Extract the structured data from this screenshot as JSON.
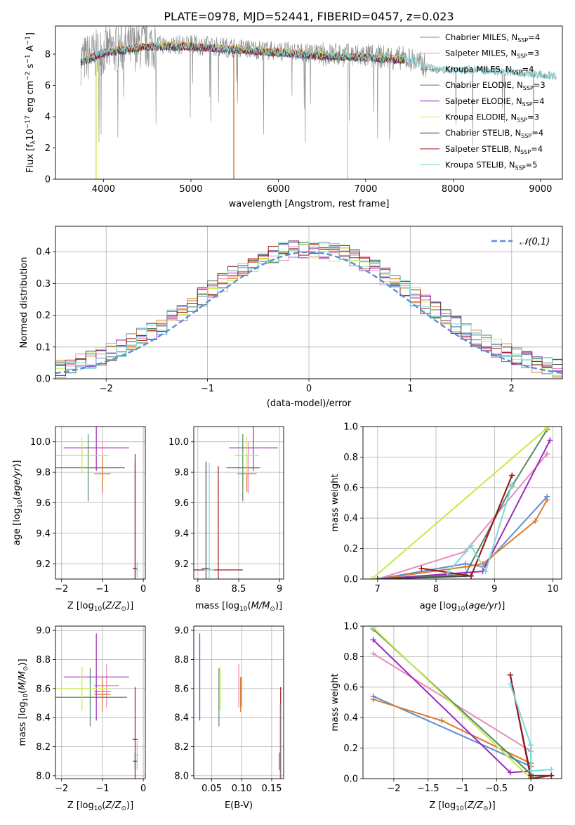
{
  "figure_title": "PLATE=0978, MJD=52441, FIBERID=0457, z=0.023",
  "models": [
    {
      "name": "Chabrier MILES, N$_{SSP}$=4",
      "label": "Chabrier MILES, N",
      "sub": "SSP",
      "tail": "=4",
      "color": "#5b8fd4"
    },
    {
      "name": "Salpeter MILES, N$_{SSP}$=3",
      "label": "Salpeter MILES, N",
      "sub": "SSP",
      "tail": "=3",
      "color": "#e88bbf"
    },
    {
      "name": "Kroupa MILES, N$_{SSP}$=4",
      "label": "Kroupa MILES, N",
      "sub": "SSP",
      "tail": "=4",
      "color": "#e07b2a"
    },
    {
      "name": "Chabrier ELODIE, N$_{SSP}$=3",
      "label": "Chabrier ELODIE, N",
      "sub": "SSP",
      "tail": "=3",
      "color": "#4e8b5f"
    },
    {
      "name": "Salpeter ELODIE, N$_{SSP}$=4",
      "label": "Salpeter ELODIE, N",
      "sub": "SSP",
      "tail": "=4",
      "color": "#9a2bbf"
    },
    {
      "name": "Kroupa ELODIE, N$_{SSP}$=3",
      "label": "Kroupa ELODIE, N",
      "sub": "SSP",
      "tail": "=3",
      "color": "#c9e84a"
    },
    {
      "name": "Chabrier STELIB, N$_{SSP}$=4",
      "label": "Chabrier STELIB, N",
      "sub": "SSP",
      "tail": "=4",
      "color": "#444444"
    },
    {
      "name": "Salpeter STELIB, N$_{SSP}$=4",
      "label": "Salpeter STELIB, N",
      "sub": "SSP",
      "tail": "=4",
      "color": "#a01818"
    },
    {
      "name": "Kroupa STELIB, N$_{SSP}$=5",
      "label": "Kroupa STELIB, N",
      "sub": "SSP",
      "tail": "=5",
      "color": "#7fd8d8"
    }
  ],
  "chart_data": [
    {
      "id": "spectrum",
      "type": "line",
      "xlabel": "wavelength [Angstrom, rest frame]",
      "ylabel": "Flux [f$_\\lambda$10$^{-17}$ erg cm$^{-2}$ s$^{-1}$ A$^{-1}$]",
      "ylabel_parts": {
        "a": "Flux [f",
        "b": "λ",
        "c": "10",
        "d": "−17",
        "e": " erg cm",
        "f": "−2",
        "g": " s",
        "h": "−1",
        "i": " A",
        "j": "−1",
        "k": "]"
      },
      "xlim": [
        3450,
        9250
      ],
      "ylim": [
        0,
        9.8
      ],
      "xticks": [
        4000,
        5000,
        6000,
        7000,
        8000,
        9000
      ],
      "yticks": [
        0,
        2,
        4,
        6,
        8
      ],
      "wave_range": [
        3740,
        9180
      ],
      "continuum": [
        [
          3740,
          7.6
        ],
        [
          4000,
          8.2
        ],
        [
          4500,
          8.6
        ],
        [
          5000,
          8.6
        ],
        [
          5500,
          8.4
        ],
        [
          6000,
          8.2
        ],
        [
          6500,
          8.0
        ],
        [
          7000,
          7.9
        ],
        [
          7500,
          7.7
        ],
        [
          7800,
          7.0
        ],
        [
          8200,
          7.0
        ],
        [
          8600,
          6.9
        ],
        [
          9180,
          6.6
        ]
      ],
      "data_color": "#888888",
      "grid": false,
      "legend_position": "upper right"
    },
    {
      "id": "residual-histogram",
      "type": "histogram",
      "xlabel": "(data-model)/error",
      "ylabel": "Normed distribution",
      "xlim": [
        -2.5,
        2.5
      ],
      "ylim": [
        0,
        0.48
      ],
      "xticks": [
        -2,
        -1,
        0,
        1,
        2
      ],
      "yticks": [
        0.0,
        0.1,
        0.2,
        0.3,
        0.4
      ],
      "bin_width": 0.1,
      "normal_label": "𝒩(0,1)",
      "normal_color": "#5b8fd4",
      "grid": true,
      "legend_position": "upper right"
    },
    {
      "id": "age-vs-Z",
      "type": "errorbar",
      "xlabel": "Z [log10(Z/Z⊙)]",
      "ylabel": "age [log10(age/yr)]",
      "xlim": [
        -2.15,
        0.05
      ],
      "ylim": [
        9.1,
        10.1
      ],
      "xticks": [
        -2,
        -1,
        0
      ],
      "yticks": [
        9.2,
        9.4,
        9.6,
        9.8,
        10.0
      ],
      "points": [
        {
          "model": 0,
          "x": -1.0,
          "y": 9.79,
          "xerr": 0.2,
          "yerr": 0.12
        },
        {
          "model": 1,
          "x": -1.0,
          "y": 9.83,
          "xerr": 0.3,
          "yerr": 0.17
        },
        {
          "model": 2,
          "x": -1.0,
          "y": 9.79,
          "xerr": 0.2,
          "yerr": 0.12
        },
        {
          "model": 3,
          "x": -1.35,
          "y": 9.83,
          "xerr": 0.9,
          "yerr": 0.22
        },
        {
          "model": 4,
          "x": -1.15,
          "y": 9.96,
          "xerr": 0.8,
          "yerr": 0.15
        },
        {
          "model": 5,
          "x": -1.5,
          "y": 9.91,
          "xerr": 0.65,
          "yerr": 0.12
        },
        {
          "model": 6,
          "x": -0.2,
          "y": 9.17,
          "xerr": 0.05,
          "yerr": 0.7
        },
        {
          "model": 7,
          "x": -0.2,
          "y": 9.17,
          "xerr": 0.06,
          "yerr": 0.75
        },
        {
          "model": 8,
          "x": -0.15,
          "y": 9.16,
          "xerr": 0.04,
          "yerr": 0.05
        }
      ],
      "grid": true
    },
    {
      "id": "age-vs-mass",
      "type": "errorbar",
      "xlabel": "mass [log10(M/M⊙)]",
      "ylabel": "",
      "xlim": [
        7.95,
        9.05
      ],
      "ylim": [
        9.1,
        10.1
      ],
      "xticks": [
        8.0,
        8.5,
        9.0
      ],
      "yticks": [
        9.2,
        9.4,
        9.6,
        9.8,
        10.0
      ],
      "points": [
        {
          "model": 0,
          "x": 8.6,
          "y": 9.79,
          "xerr": 0.1,
          "yerr": 0.12
        },
        {
          "model": 1,
          "x": 8.62,
          "y": 9.83,
          "xerr": 0.15,
          "yerr": 0.17
        },
        {
          "model": 2,
          "x": 8.6,
          "y": 9.79,
          "xerr": 0.12,
          "yerr": 0.12
        },
        {
          "model": 3,
          "x": 8.55,
          "y": 9.83,
          "xerr": 0.2,
          "yerr": 0.22
        },
        {
          "model": 4,
          "x": 8.68,
          "y": 9.96,
          "xerr": 0.3,
          "yerr": 0.15
        },
        {
          "model": 5,
          "x": 8.6,
          "y": 9.91,
          "xerr": 0.15,
          "yerr": 0.12
        },
        {
          "model": 6,
          "x": 8.1,
          "y": 9.17,
          "xerr": 0.05,
          "yerr": 0.7
        },
        {
          "model": 7,
          "x": 8.25,
          "y": 9.16,
          "xerr": 0.3,
          "yerr": 0.68
        },
        {
          "model": 8,
          "x": 8.14,
          "y": 9.16,
          "xerr": 0.06,
          "yerr": 0.7
        }
      ],
      "grid": true
    },
    {
      "id": "mass-weight-vs-age",
      "type": "line",
      "xlabel": "age [log10(age/yr)]",
      "ylabel": "mass weight",
      "xlim": [
        6.75,
        10.15
      ],
      "ylim": [
        0,
        1.0
      ],
      "xticks": [
        7,
        8,
        9,
        10
      ],
      "yticks": [
        0.0,
        0.2,
        0.4,
        0.6,
        0.8,
        1.0
      ],
      "series": [
        {
          "model": 0,
          "x": [
            7.0,
            8.5,
            8.8,
            9.9
          ],
          "y": [
            0.0,
            0.1,
            0.08,
            0.54
          ]
        },
        {
          "model": 1,
          "x": [
            7.0,
            8.5,
            9.9
          ],
          "y": [
            0.0,
            0.18,
            0.82
          ]
        },
        {
          "model": 2,
          "x": [
            7.0,
            8.5,
            8.8,
            9.7,
            9.9
          ],
          "y": [
            0.0,
            0.08,
            0.1,
            0.38,
            0.52
          ]
        },
        {
          "model": 3,
          "x": [
            7.0,
            8.5,
            9.3,
            9.9
          ],
          "y": [
            0.0,
            0.03,
            0.61,
            0.98
          ]
        },
        {
          "model": 4,
          "x": [
            7.0,
            8.8,
            9.95
          ],
          "y": [
            0.0,
            0.05,
            0.91
          ]
        },
        {
          "model": 5,
          "x": [
            6.9,
            9.9
          ],
          "y": [
            0.0,
            0.99
          ]
        },
        {
          "model": 6,
          "x": [
            7.0,
            8.6,
            9.3
          ],
          "y": [
            0.0,
            0.02,
            0.68
          ]
        },
        {
          "model": 7,
          "x": [
            7.75,
            8.6,
            9.3
          ],
          "y": [
            0.07,
            0.02,
            0.68
          ]
        },
        {
          "model": 8,
          "x": [
            8.2,
            8.6,
            8.85,
            9.3
          ],
          "y": [
            0.04,
            0.22,
            0.05,
            0.62
          ]
        }
      ],
      "grid": true
    },
    {
      "id": "mass-vs-Z",
      "type": "errorbar",
      "xlabel": "Z [log10(Z/Z⊙)]",
      "ylabel": "mass [log10(M/M⊙)]",
      "xlim": [
        -2.15,
        0.05
      ],
      "ylim": [
        7.98,
        9.03
      ],
      "xticks": [
        -2,
        -1,
        0
      ],
      "yticks": [
        8.0,
        8.2,
        8.4,
        8.6,
        8.8,
        9.0
      ],
      "points": [
        {
          "model": 0,
          "x": -1.0,
          "y": 8.58,
          "xerr": 0.2,
          "yerr": 0.1
        },
        {
          "model": 1,
          "x": -0.9,
          "y": 8.62,
          "xerr": 0.3,
          "yerr": 0.15
        },
        {
          "model": 2,
          "x": -1.0,
          "y": 8.56,
          "xerr": 0.2,
          "yerr": 0.12
        },
        {
          "model": 3,
          "x": -1.3,
          "y": 8.54,
          "xerr": 0.9,
          "yerr": 0.2
        },
        {
          "model": 4,
          "x": -1.15,
          "y": 8.68,
          "xerr": 0.8,
          "yerr": 0.3
        },
        {
          "model": 5,
          "x": -1.5,
          "y": 8.6,
          "xerr": 0.65,
          "yerr": 0.15
        },
        {
          "model": 6,
          "x": -0.2,
          "y": 8.1,
          "xerr": 0.05,
          "yerr": 0.06
        },
        {
          "model": 7,
          "x": -0.2,
          "y": 8.25,
          "xerr": 0.06,
          "yerr": 0.36
        },
        {
          "model": 8,
          "x": -0.15,
          "y": 8.14,
          "xerr": 0.04,
          "yerr": 0.1
        }
      ],
      "grid": true
    },
    {
      "id": "mass-vs-EBV",
      "type": "errorbar",
      "xlabel": "E(B-V)",
      "ylabel": "",
      "xlim": [
        0.02,
        0.17
      ],
      "ylim": [
        7.98,
        9.03
      ],
      "xticks": [
        0.05,
        0.1,
        0.15
      ],
      "tick_labels": [
        "0.05",
        "0.10",
        "0.15"
      ],
      "yticks": [
        8.0,
        8.2,
        8.4,
        8.6,
        8.8,
        9.0
      ],
      "points": [
        {
          "model": 0,
          "x": 0.1,
          "y": 8.58,
          "xerr": 0,
          "yerr": 0.1
        },
        {
          "model": 1,
          "x": 0.095,
          "y": 8.62,
          "xerr": 0,
          "yerr": 0.15
        },
        {
          "model": 2,
          "x": 0.098,
          "y": 8.56,
          "xerr": 0,
          "yerr": 0.12
        },
        {
          "model": 3,
          "x": 0.062,
          "y": 8.54,
          "xerr": 0,
          "yerr": 0.2
        },
        {
          "model": 4,
          "x": 0.03,
          "y": 8.68,
          "xerr": 0,
          "yerr": 0.3
        },
        {
          "model": 5,
          "x": 0.064,
          "y": 8.6,
          "xerr": 0,
          "yerr": 0.15
        },
        {
          "model": 6,
          "x": 0.163,
          "y": 8.1,
          "xerr": 0,
          "yerr": 0.06
        },
        {
          "model": 7,
          "x": 0.165,
          "y": 8.25,
          "xerr": 0,
          "yerr": 0.36
        },
        {
          "model": 8,
          "x": 0.164,
          "y": 8.14,
          "xerr": 0,
          "yerr": 0.35
        }
      ],
      "grid": true
    },
    {
      "id": "mass-weight-vs-Z",
      "type": "line",
      "xlabel": "Z [log10(Z/Z⊙)]",
      "ylabel": "mass weight",
      "xlim": [
        -2.45,
        0.45
      ],
      "ylim": [
        0,
        1.0
      ],
      "xticks": [
        -2.0,
        -1.5,
        -1.0,
        -0.5,
        0.0
      ],
      "yticks": [
        0.0,
        0.2,
        0.4,
        0.6,
        0.8,
        1.0
      ],
      "series": [
        {
          "model": 0,
          "x": [
            -2.3,
            0.0,
            0.0,
            0.0
          ],
          "y": [
            0.54,
            0.08,
            0.22,
            0.0
          ]
        },
        {
          "model": 1,
          "x": [
            -2.3,
            0.0,
            0.0
          ],
          "y": [
            0.82,
            0.18,
            0.0
          ]
        },
        {
          "model": 2,
          "x": [
            -2.3,
            -1.3,
            0.0,
            0.0
          ],
          "y": [
            0.52,
            0.38,
            0.1,
            0.08
          ]
        },
        {
          "model": 3,
          "x": [
            -2.3,
            0.0,
            0.0
          ],
          "y": [
            0.98,
            0.03,
            0.01
          ]
        },
        {
          "model": 4,
          "x": [
            -2.3,
            -0.3,
            0.0
          ],
          "y": [
            0.91,
            0.04,
            0.05
          ]
        },
        {
          "model": 5,
          "x": [
            -2.3,
            0.0
          ],
          "y": [
            0.99,
            0.0
          ]
        },
        {
          "model": 6,
          "x": [
            -0.3,
            0.0,
            0.3
          ],
          "y": [
            0.68,
            0.02,
            0.02
          ]
        },
        {
          "model": 7,
          "x": [
            -0.3,
            0.0,
            0.3
          ],
          "y": [
            0.68,
            0.0,
            0.02
          ]
        },
        {
          "model": 8,
          "x": [
            -0.3,
            0.0,
            0.0,
            0.3
          ],
          "y": [
            0.62,
            0.22,
            0.05,
            0.06
          ]
        }
      ],
      "grid": true
    }
  ]
}
